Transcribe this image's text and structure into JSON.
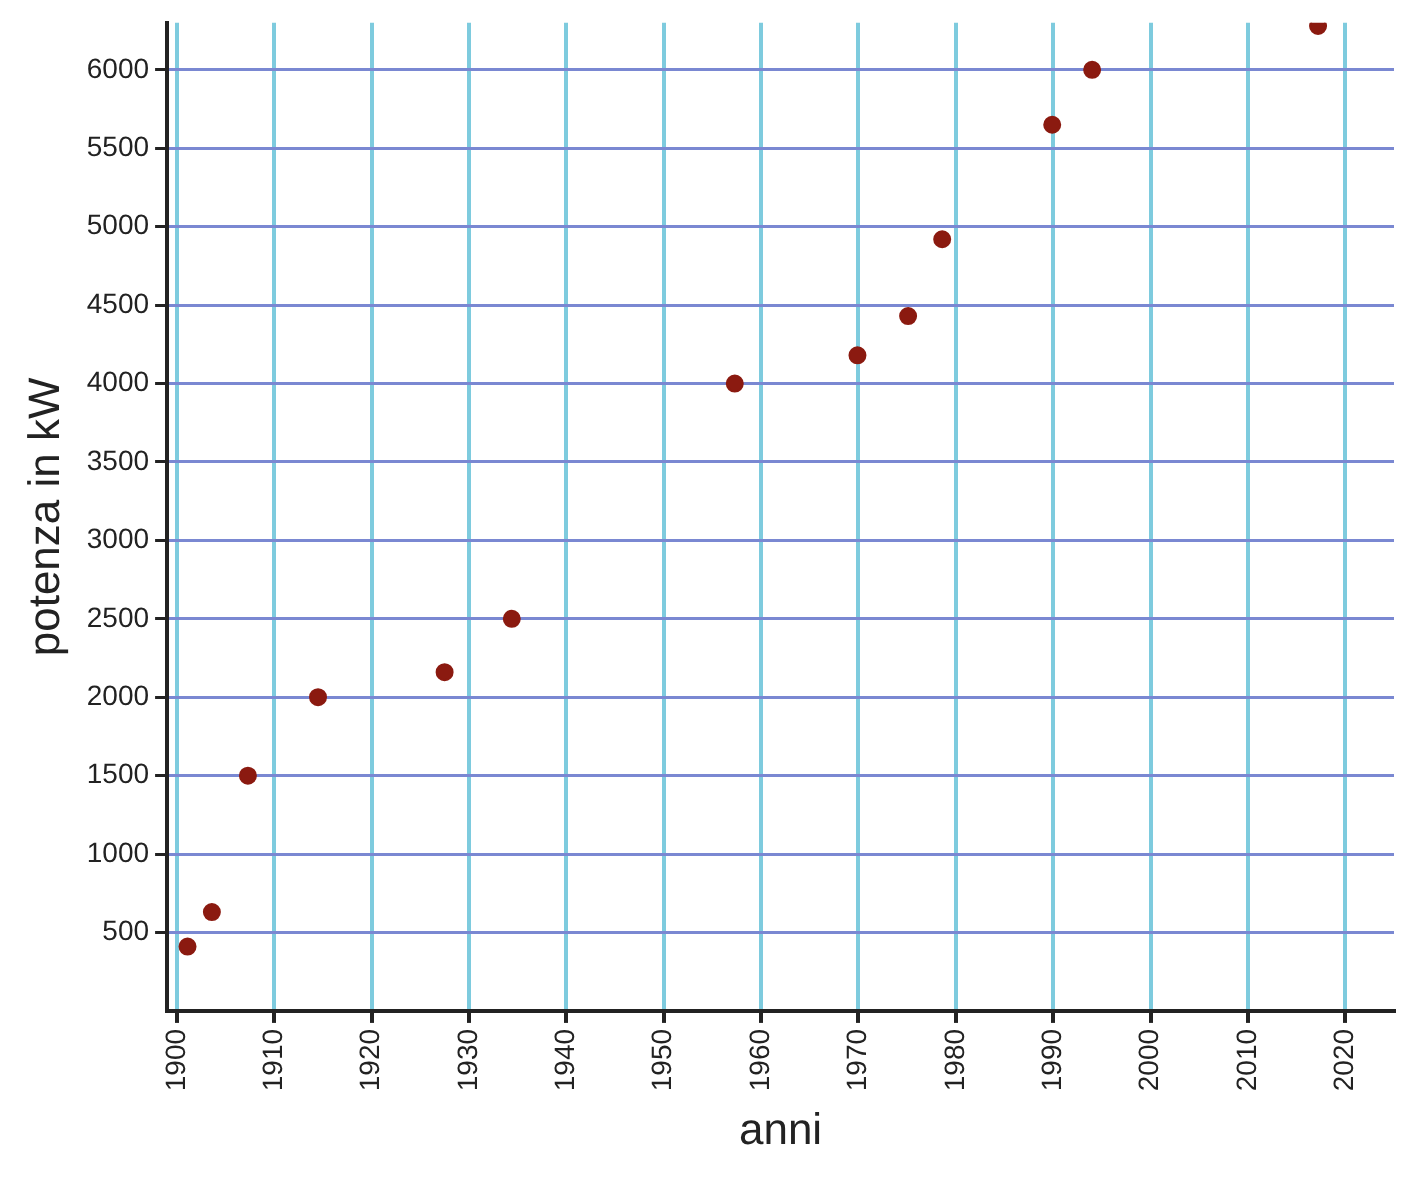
{
  "chart_data": {
    "type": "scatter",
    "xlabel": "anni",
    "ylabel": "potenza in kW",
    "x": [
      1901.1,
      1903.6,
      1907.3,
      1914.5,
      1927.5,
      1934.4,
      1957.3,
      1969.9,
      1975.1,
      1978.6,
      1989.9,
      1994.0,
      2017.2
    ],
    "values": [
      410,
      630,
      1500,
      2000,
      2160,
      2500,
      4000,
      4180,
      4430,
      4920,
      5650,
      6000,
      6280
    ],
    "color": "#8b1a10",
    "marker": "circle",
    "xlim": [
      1899,
      2025
    ],
    "xticks": [
      1900,
      1910,
      1920,
      1930,
      1940,
      1950,
      1960,
      1970,
      1980,
      1990,
      2000,
      2010,
      2020
    ],
    "ylim": [
      0,
      6300
    ],
    "yticks": [
      500,
      1000,
      1500,
      2000,
      2500,
      3000,
      3500,
      4000,
      4500,
      5000,
      5500,
      6000
    ],
    "grid": true,
    "legend": false
  }
}
